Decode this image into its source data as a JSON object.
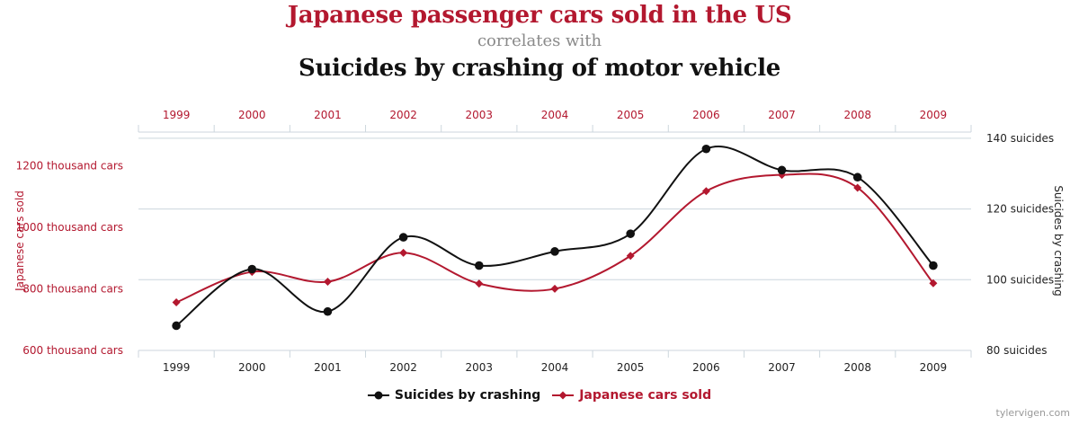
{
  "titles": {
    "series_a": "Japanese passenger cars sold in the US",
    "connector": "correlates with",
    "series_b": "Suicides by crashing of motor vehicle"
  },
  "watermark": "tylervigen.com",
  "colors": {
    "red": "#b3182f",
    "black": "#111111",
    "grid": "#ccd6dd"
  },
  "chart_data": {
    "type": "line",
    "categories": [
      "1999",
      "2000",
      "2001",
      "2002",
      "2003",
      "2004",
      "2005",
      "2006",
      "2007",
      "2008",
      "2009"
    ],
    "left_axis": {
      "label": "Japanese cars sold",
      "range": [
        600,
        1300
      ],
      "ticks": [
        {
          "value": 600,
          "label": "600 thousand cars"
        },
        {
          "value": 800,
          "label": "800 thousand cars"
        },
        {
          "value": 1000,
          "label": "1000 thousand cars"
        },
        {
          "value": 1200,
          "label": "1200 thousand cars"
        }
      ]
    },
    "right_axis": {
      "label": "Suicides by crashing",
      "range": [
        80,
        141
      ],
      "ticks": [
        {
          "value": 80,
          "label": "80 suicides"
        },
        {
          "value": 100,
          "label": "100 suicides"
        },
        {
          "value": 120,
          "label": "120 suicides"
        },
        {
          "value": 140,
          "label": "140 suicides"
        }
      ]
    },
    "series": [
      {
        "name": "Suicides by crashing",
        "axis": "right",
        "color": "#111111",
        "marker": "circle",
        "values": [
          87,
          103,
          91,
          112,
          104,
          108,
          113,
          137,
          131,
          129,
          104
        ]
      },
      {
        "name": "Japanese cars sold",
        "axis": "left",
        "color": "#b3182f",
        "marker": "diamond",
        "values": [
          756,
          855,
          823,
          917,
          817,
          800,
          907,
          1117,
          1170,
          1128,
          818
        ]
      }
    ]
  }
}
